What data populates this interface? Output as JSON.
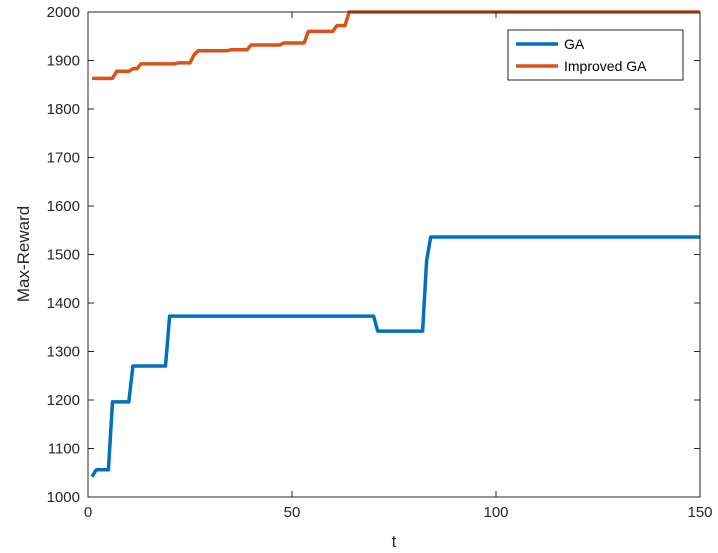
{
  "chart_data": {
    "type": "line",
    "title": "",
    "xlabel": "t",
    "ylabel": "Max-Reward",
    "xlim": [
      0,
      150
    ],
    "ylim": [
      1000,
      2000
    ],
    "xticks": [
      0,
      50,
      100,
      150
    ],
    "yticks": [
      1000,
      1100,
      1200,
      1300,
      1400,
      1500,
      1600,
      1700,
      1800,
      1900,
      2000
    ],
    "grid": false,
    "legend_position": "top-right",
    "series": [
      {
        "name": "GA",
        "color": "#0072BD",
        "points": [
          [
            1,
            1042
          ],
          [
            2,
            1056
          ],
          [
            5,
            1056
          ],
          [
            6,
            1196
          ],
          [
            10,
            1196
          ],
          [
            11,
            1270
          ],
          [
            19,
            1270
          ],
          [
            20,
            1373
          ],
          [
            70,
            1373
          ],
          [
            71,
            1342
          ],
          [
            82,
            1342
          ],
          [
            83,
            1487
          ],
          [
            84,
            1536
          ],
          [
            150,
            1536
          ]
        ]
      },
      {
        "name": "Improved GA",
        "color": "#D95319",
        "points": [
          [
            1,
            1863
          ],
          [
            6,
            1863
          ],
          [
            7,
            1878
          ],
          [
            10,
            1878
          ],
          [
            11,
            1883
          ],
          [
            12,
            1883
          ],
          [
            13,
            1893
          ],
          [
            21,
            1893
          ],
          [
            22,
            1895
          ],
          [
            25,
            1895
          ],
          [
            26,
            1912
          ],
          [
            27,
            1920
          ],
          [
            34,
            1920
          ],
          [
            35,
            1922
          ],
          [
            39,
            1922
          ],
          [
            40,
            1932
          ],
          [
            47,
            1932
          ],
          [
            48,
            1936
          ],
          [
            53,
            1936
          ],
          [
            54,
            1960
          ],
          [
            60,
            1960
          ],
          [
            61,
            1972
          ],
          [
            63,
            1972
          ],
          [
            64,
            2000
          ],
          [
            150,
            2000
          ]
        ]
      }
    ]
  }
}
